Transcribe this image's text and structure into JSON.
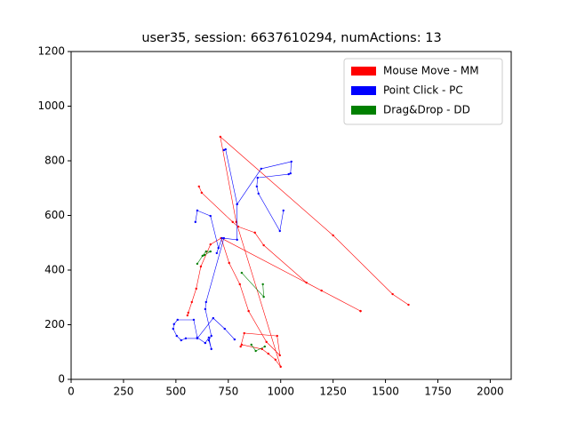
{
  "chart_data": {
    "type": "line",
    "title": "user35, session: 6637610294, numActions: 13",
    "xlim": [
      0,
      2100
    ],
    "ylim": [
      0,
      1200
    ],
    "xticks": [
      0,
      250,
      500,
      750,
      1000,
      1250,
      1500,
      1750,
      2000
    ],
    "yticks": [
      0,
      200,
      400,
      600,
      800,
      1000,
      1200
    ],
    "grid": false,
    "legend": "upper right",
    "series": [
      {
        "name": "Mouse Move - MM",
        "color": "#ff0000",
        "x": [
          1610,
          1534,
          1250,
          712,
          788,
          1000,
          975,
          941,
          911,
          814,
          null,
          610,
          623,
          771,
          797,
          877,
          919,
          1123,
          1195,
          1381,
          null,
          1381,
          716,
          665,
          619,
          597,
          576,
          559,
          555,
          null,
          716,
          754,
          805,
          847,
          932,
          996,
          983,
          826,
          809
        ],
        "values": [
          273,
          312,
          527,
          888,
          576,
          46,
          72,
          94,
          111,
          127,
          null,
          706,
          683,
          576,
          559,
          537,
          491,
          354,
          325,
          250,
          null,
          250,
          517,
          494,
          413,
          332,
          283,
          244,
          234,
          null,
          517,
          426,
          348,
          250,
          137,
          88,
          159,
          169,
          120
        ]
      },
      {
        "name": "Point Click - PC",
        "color": "#0000ff",
        "x": [
          729,
          737,
          792,
          792,
          720,
          695,
          703,
          665,
          602,
          593,
          null,
          792,
          907,
          1051,
          1047,
          1038,
          890,
          886,
          894,
          996,
          1013,
          null,
          729,
          644,
          640,
          669,
          657,
          669,
          657,
          640,
          602,
          585,
          508,
          491,
          487,
          504,
          525,
          547,
          602,
          678,
          733,
          780
        ],
        "values": [
          839,
          842,
          641,
          511,
          517,
          462,
          481,
          598,
          618,
          576,
          null,
          641,
          771,
          797,
          754,
          751,
          738,
          706,
          680,
          543,
          618,
          null,
          517,
          283,
          257,
          159,
          143,
          111,
          153,
          133,
          153,
          218,
          218,
          202,
          185,
          159,
          143,
          150,
          150,
          224,
          185,
          146
        ]
      },
      {
        "name": "Drag&Drop - DD",
        "color": "#008000",
        "x": [
          602,
          627,
          644,
          665,
          636,
          null,
          814,
          919,
          915,
          null,
          860,
          881,
          924
        ],
        "values": [
          423,
          452,
          468,
          468,
          455,
          null,
          390,
          302,
          348,
          null,
          127,
          104,
          120
        ]
      }
    ]
  }
}
